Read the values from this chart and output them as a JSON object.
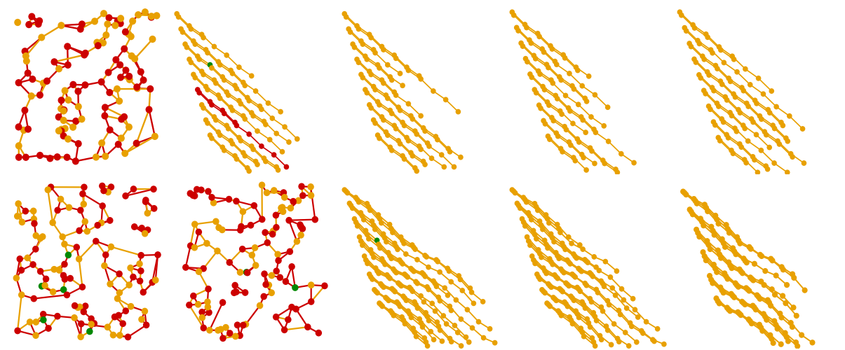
{
  "background_color": "#ffffff",
  "fig_width": 12.05,
  "fig_height": 5.0,
  "colors": {
    "gold": "#E8A000",
    "red": "#CC0000",
    "green": "#008800"
  }
}
